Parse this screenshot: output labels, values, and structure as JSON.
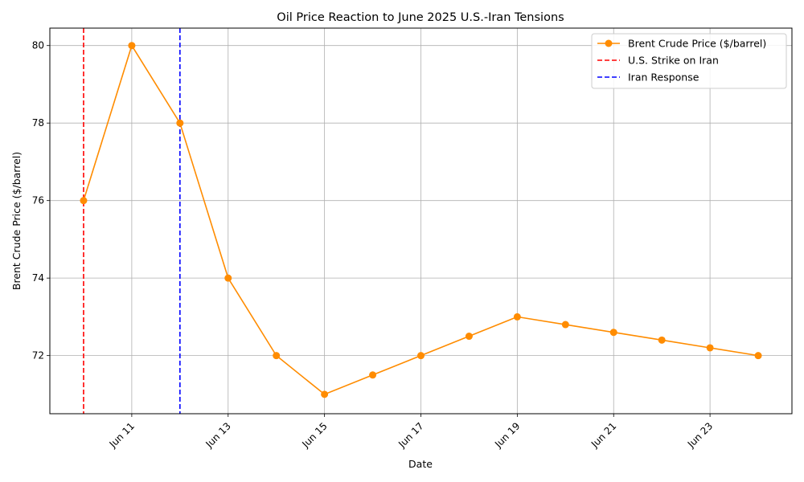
{
  "chart_data": {
    "type": "line",
    "title": "Oil Price Reaction to June 2025 U.S.-Iran Tensions",
    "xlabel": "Date",
    "ylabel": "Brent Crude Price ($/barrel)",
    "x": [
      "Jun 10",
      "Jun 11",
      "Jun 12",
      "Jun 13",
      "Jun 14",
      "Jun 15",
      "Jun 16",
      "Jun 17",
      "Jun 18",
      "Jun 19",
      "Jun 20",
      "Jun 21",
      "Jun 22",
      "Jun 23",
      "Jun 24"
    ],
    "xticks": [
      "Jun 11",
      "Jun 13",
      "Jun 15",
      "Jun 17",
      "Jun 19",
      "Jun 21",
      "Jun 23"
    ],
    "yticks": [
      72,
      74,
      76,
      78,
      80
    ],
    "xlim": [
      "Jun 9.3",
      "Jun 24.7"
    ],
    "ylim": [
      70.5,
      80.45
    ],
    "grid": true,
    "legend_position": "top-right",
    "series": [
      {
        "name": "Brent Crude Price ($/barrel)",
        "color": "#ff8c00",
        "marker": "circle",
        "values": [
          76,
          80,
          78,
          74,
          72,
          71,
          71.5,
          72,
          72.5,
          73,
          72.8,
          72.6,
          72.4,
          72.2,
          72
        ]
      }
    ],
    "vlines": [
      {
        "name": "U.S. Strike on Iran",
        "x": "Jun 10",
        "color": "#ff0000",
        "style": "dashed"
      },
      {
        "name": "Iran Response",
        "x": "Jun 12",
        "color": "#0000ff",
        "style": "dashed"
      }
    ]
  }
}
